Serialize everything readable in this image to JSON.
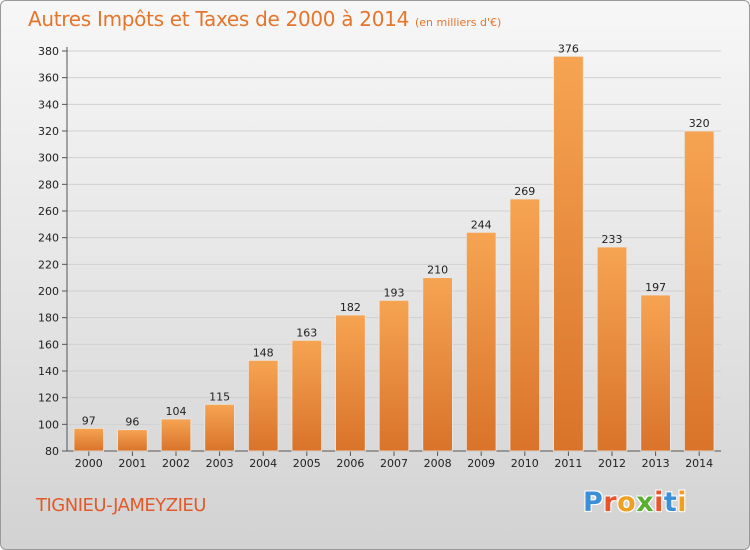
{
  "chart_data": {
    "type": "bar",
    "title": "Autres Impôts et Taxes de 2000 à 2014",
    "subtitle": "(en milliers d'€)",
    "categories": [
      "2000",
      "2001",
      "2002",
      "2003",
      "2004",
      "2005",
      "2006",
      "2007",
      "2008",
      "2009",
      "2010",
      "2011",
      "2012",
      "2013",
      "2014"
    ],
    "values": [
      97,
      96,
      104,
      115,
      148,
      163,
      182,
      193,
      210,
      244,
      269,
      376,
      233,
      197,
      320
    ],
    "ylim": [
      80,
      380
    ],
    "ytick_step": 20,
    "grid": true,
    "bar_color_top": "#f6a452",
    "bar_color_bottom": "#d9732a"
  },
  "footer": {
    "commune": "TIGNIEU-JAMEYZIEU",
    "logo_letters": [
      "P",
      "r",
      "o",
      "x",
      "i",
      "t",
      "i"
    ],
    "logo_colors": [
      "#3a8fd6",
      "#e8542c",
      "#f0a020",
      "#58b030",
      "#e8542c",
      "#3a8fd6",
      "#f0a020"
    ]
  }
}
